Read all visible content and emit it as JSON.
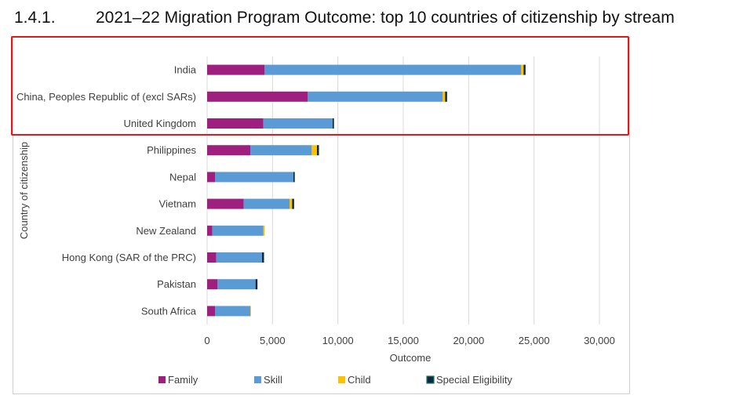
{
  "heading": {
    "number": "1.4.1.",
    "title": "2021–22 Migration Program Outcome: top 10 countries of citizenship by stream"
  },
  "chart_data": {
    "type": "bar",
    "orientation": "horizontal",
    "stacked": true,
    "title": "2021–22 Migration Program Outcome: top 10 countries of citizenship by stream",
    "xlabel": "Outcome",
    "ylabel": "Country of citizenship",
    "xlim": [
      0,
      30000
    ],
    "xticks": [
      0,
      5000,
      10000,
      15000,
      20000,
      25000,
      30000
    ],
    "xtick_labels": [
      "0",
      "5,000",
      "10,000",
      "15,000",
      "20,000",
      "25,000",
      "30,000"
    ],
    "grid": true,
    "legend_position": "bottom",
    "categories": [
      "India",
      "China, Peoples Republic of (excl SARs)",
      "United Kingdom",
      "Philippines",
      "Nepal",
      "Vietnam",
      "New Zealand",
      "Hong Kong (SAR of the PRC)",
      "Pakistan",
      "South Africa"
    ],
    "series": [
      {
        "name": "Family",
        "color": "#9e1f7e",
        "values": [
          4400,
          7700,
          4300,
          3300,
          600,
          2800,
          400,
          700,
          800,
          600
        ]
      },
      {
        "name": "Skill",
        "color": "#5b9bd5",
        "values": [
          19600,
          10300,
          5300,
          4700,
          6000,
          3500,
          3900,
          3500,
          2900,
          2700
        ]
      },
      {
        "name": "Child",
        "color": "#ffc000",
        "values": [
          200,
          200,
          0,
          400,
          0,
          200,
          100,
          0,
          0,
          50
        ]
      },
      {
        "name": "Special Eligibility",
        "color": "#0b2a3c",
        "values": [
          150,
          150,
          100,
          150,
          100,
          150,
          0,
          150,
          150,
          0
        ]
      }
    ]
  },
  "highlight_note": ""
}
